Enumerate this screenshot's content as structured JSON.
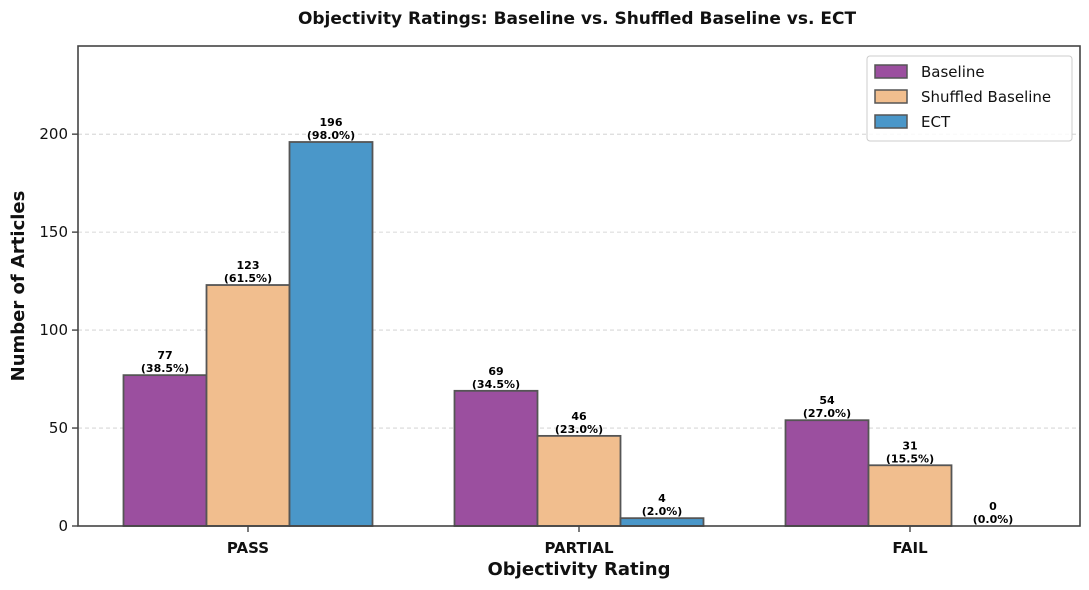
{
  "chart_data": {
    "type": "bar",
    "title": "Objectivity Ratings: Baseline vs. Shuffled Baseline vs.  ECT",
    "xlabel": "Objectivity Rating",
    "ylabel": "Number of Articles",
    "categories": [
      "PASS",
      "PARTIAL",
      "FAIL"
    ],
    "series": [
      {
        "name": "Baseline",
        "values": [
          77,
          69,
          54
        ],
        "labels": [
          "(38.5%)",
          "(34.5%)",
          "(27.0%)"
        ],
        "color": "#9b4f9f"
      },
      {
        "name": "Shuffled Baseline",
        "values": [
          123,
          46,
          31
        ],
        "labels": [
          "(61.5%)",
          "(23.0%)",
          "(15.5%)"
        ],
        "color": "#f1be8e"
      },
      {
        "name": "ECT",
        "values": [
          196,
          4,
          0
        ],
        "labels": [
          "(98.0%)",
          "(2.0%)",
          "(0.0%)"
        ],
        "color": "#4a97c9"
      }
    ],
    "ylim": [
      0,
      245
    ],
    "yticks": [
      0,
      50,
      100,
      150,
      200
    ],
    "grid": "horizontal dashed",
    "legend_position": "top-right",
    "bar_edge_color": "#555555"
  }
}
